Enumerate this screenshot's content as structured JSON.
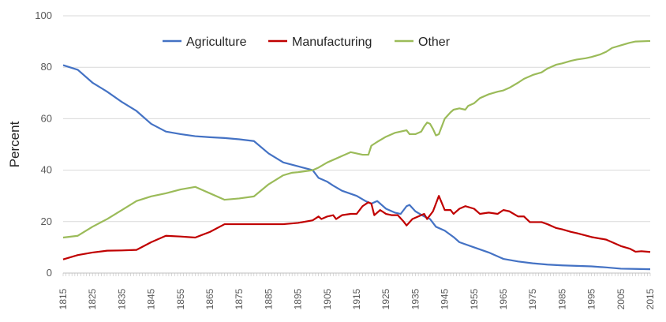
{
  "chart_data": {
    "type": "line",
    "title": "",
    "xlabel": "",
    "ylabel": "Percent",
    "ylim": [
      0,
      100
    ],
    "xlim": [
      1815,
      2015
    ],
    "yticks": [
      0,
      20,
      40,
      60,
      80,
      100
    ],
    "xticks": [
      1815,
      1825,
      1835,
      1845,
      1855,
      1865,
      1875,
      1885,
      1895,
      1905,
      1915,
      1925,
      1935,
      1945,
      1955,
      1965,
      1975,
      1985,
      1995,
      2005,
      2015
    ],
    "grid": true,
    "legend_position": "top",
    "series": [
      {
        "name": "Agriculture",
        "color": "#4472C4",
        "points": [
          [
            1815,
            80.8
          ],
          [
            1820,
            79
          ],
          [
            1825,
            74
          ],
          [
            1830,
            70.5
          ],
          [
            1835,
            66.5
          ],
          [
            1840,
            63
          ],
          [
            1845,
            58
          ],
          [
            1850,
            55
          ],
          [
            1855,
            54
          ],
          [
            1860,
            53.2
          ],
          [
            1865,
            52.8
          ],
          [
            1870,
            52.5
          ],
          [
            1875,
            52
          ],
          [
            1880,
            51.3
          ],
          [
            1885,
            46.5
          ],
          [
            1890,
            43
          ],
          [
            1895,
            41.5
          ],
          [
            1900,
            40
          ],
          [
            1902,
            37
          ],
          [
            1905,
            35.5
          ],
          [
            1907,
            34
          ],
          [
            1910,
            32
          ],
          [
            1915,
            30
          ],
          [
            1918,
            28
          ],
          [
            1920,
            27
          ],
          [
            1922,
            28
          ],
          [
            1925,
            25
          ],
          [
            1928,
            23.5
          ],
          [
            1930,
            23
          ],
          [
            1932,
            26
          ],
          [
            1933,
            26.5
          ],
          [
            1935,
            24
          ],
          [
            1938,
            22
          ],
          [
            1940,
            21
          ],
          [
            1942,
            18
          ],
          [
            1945,
            16.5
          ],
          [
            1948,
            14
          ],
          [
            1950,
            12
          ],
          [
            1955,
            10
          ],
          [
            1960,
            8
          ],
          [
            1965,
            5.5
          ],
          [
            1970,
            4.5
          ],
          [
            1975,
            3.8
          ],
          [
            1980,
            3.3
          ],
          [
            1985,
            3
          ],
          [
            1990,
            2.8
          ],
          [
            1995,
            2.6
          ],
          [
            2000,
            2.2
          ],
          [
            2005,
            1.7
          ],
          [
            2010,
            1.6
          ],
          [
            2015,
            1.5
          ]
        ]
      },
      {
        "name": "Manufacturing",
        "color": "#C00000",
        "points": [
          [
            1815,
            5.3
          ],
          [
            1820,
            7
          ],
          [
            1825,
            8
          ],
          [
            1830,
            8.7
          ],
          [
            1835,
            8.8
          ],
          [
            1840,
            9
          ],
          [
            1845,
            12
          ],
          [
            1850,
            14.5
          ],
          [
            1855,
            14.2
          ],
          [
            1860,
            13.8
          ],
          [
            1865,
            16
          ],
          [
            1870,
            19
          ],
          [
            1875,
            19
          ],
          [
            1880,
            19
          ],
          [
            1885,
            19
          ],
          [
            1890,
            19
          ],
          [
            1895,
            19.5
          ],
          [
            1900,
            20.5
          ],
          [
            1902,
            22
          ],
          [
            1903,
            21
          ],
          [
            1905,
            22
          ],
          [
            1907,
            22.5
          ],
          [
            1908,
            21
          ],
          [
            1910,
            22.5
          ],
          [
            1913,
            23
          ],
          [
            1915,
            23
          ],
          [
            1917,
            26
          ],
          [
            1919,
            27.5
          ],
          [
            1920,
            27
          ],
          [
            1921,
            22.5
          ],
          [
            1923,
            24.5
          ],
          [
            1925,
            23
          ],
          [
            1927,
            22.5
          ],
          [
            1929,
            22.5
          ],
          [
            1931,
            20
          ],
          [
            1932,
            18.5
          ],
          [
            1934,
            21
          ],
          [
            1936,
            22
          ],
          [
            1938,
            23
          ],
          [
            1939,
            21
          ],
          [
            1941,
            24
          ],
          [
            1943,
            30
          ],
          [
            1945,
            24.5
          ],
          [
            1947,
            24.5
          ],
          [
            1948,
            23
          ],
          [
            1950,
            25
          ],
          [
            1952,
            26
          ],
          [
            1955,
            25
          ],
          [
            1957,
            23
          ],
          [
            1960,
            23.5
          ],
          [
            1963,
            23
          ],
          [
            1965,
            24.5
          ],
          [
            1967,
            24
          ],
          [
            1970,
            22
          ],
          [
            1972,
            22
          ],
          [
            1974,
            19.8
          ],
          [
            1978,
            19.8
          ],
          [
            1980,
            19
          ],
          [
            1983,
            17.5
          ],
          [
            1985,
            17
          ],
          [
            1988,
            16
          ],
          [
            1990,
            15.5
          ],
          [
            1995,
            14
          ],
          [
            2000,
            13
          ],
          [
            2002,
            12
          ],
          [
            2005,
            10.5
          ],
          [
            2008,
            9.5
          ],
          [
            2010,
            8.3
          ],
          [
            2012,
            8.5
          ],
          [
            2015,
            8.2
          ]
        ]
      },
      {
        "name": "Other",
        "color": "#9BBB59",
        "points": [
          [
            1815,
            13.8
          ],
          [
            1820,
            14.5
          ],
          [
            1825,
            18
          ],
          [
            1830,
            21
          ],
          [
            1835,
            24.5
          ],
          [
            1840,
            28
          ],
          [
            1845,
            29.8
          ],
          [
            1850,
            31
          ],
          [
            1855,
            32.5
          ],
          [
            1860,
            33.5
          ],
          [
            1865,
            31
          ],
          [
            1870,
            28.5
          ],
          [
            1875,
            29
          ],
          [
            1880,
            29.8
          ],
          [
            1885,
            34.5
          ],
          [
            1890,
            38
          ],
          [
            1893,
            39
          ],
          [
            1895,
            39.2
          ],
          [
            1900,
            40
          ],
          [
            1902,
            41
          ],
          [
            1905,
            43
          ],
          [
            1908,
            44.5
          ],
          [
            1910,
            45.5
          ],
          [
            1913,
            47
          ],
          [
            1915,
            46.5
          ],
          [
            1917,
            46
          ],
          [
            1919,
            46
          ],
          [
            1920,
            49.5
          ],
          [
            1922,
            51
          ],
          [
            1925,
            53
          ],
          [
            1928,
            54.5
          ],
          [
            1930,
            55
          ],
          [
            1932,
            55.5
          ],
          [
            1933,
            54
          ],
          [
            1935,
            54
          ],
          [
            1937,
            55
          ],
          [
            1938,
            57
          ],
          [
            1939,
            58.5
          ],
          [
            1940,
            58
          ],
          [
            1941,
            56
          ],
          [
            1942,
            53.5
          ],
          [
            1943,
            54
          ],
          [
            1945,
            60
          ],
          [
            1947,
            62.5
          ],
          [
            1948,
            63.5
          ],
          [
            1950,
            64
          ],
          [
            1952,
            63.5
          ],
          [
            1953,
            65
          ],
          [
            1955,
            66
          ],
          [
            1957,
            68
          ],
          [
            1960,
            69.5
          ],
          [
            1963,
            70.5
          ],
          [
            1965,
            71
          ],
          [
            1967,
            72
          ],
          [
            1970,
            74
          ],
          [
            1972,
            75.5
          ],
          [
            1975,
            77
          ],
          [
            1978,
            78
          ],
          [
            1980,
            79.5
          ],
          [
            1983,
            81
          ],
          [
            1985,
            81.5
          ],
          [
            1988,
            82.5
          ],
          [
            1990,
            83
          ],
          [
            1993,
            83.5
          ],
          [
            1995,
            84
          ],
          [
            1998,
            85
          ],
          [
            2000,
            86
          ],
          [
            2002,
            87.5
          ],
          [
            2005,
            88.5
          ],
          [
            2008,
            89.5
          ],
          [
            2010,
            90
          ],
          [
            2015,
            90.2
          ]
        ]
      }
    ]
  }
}
